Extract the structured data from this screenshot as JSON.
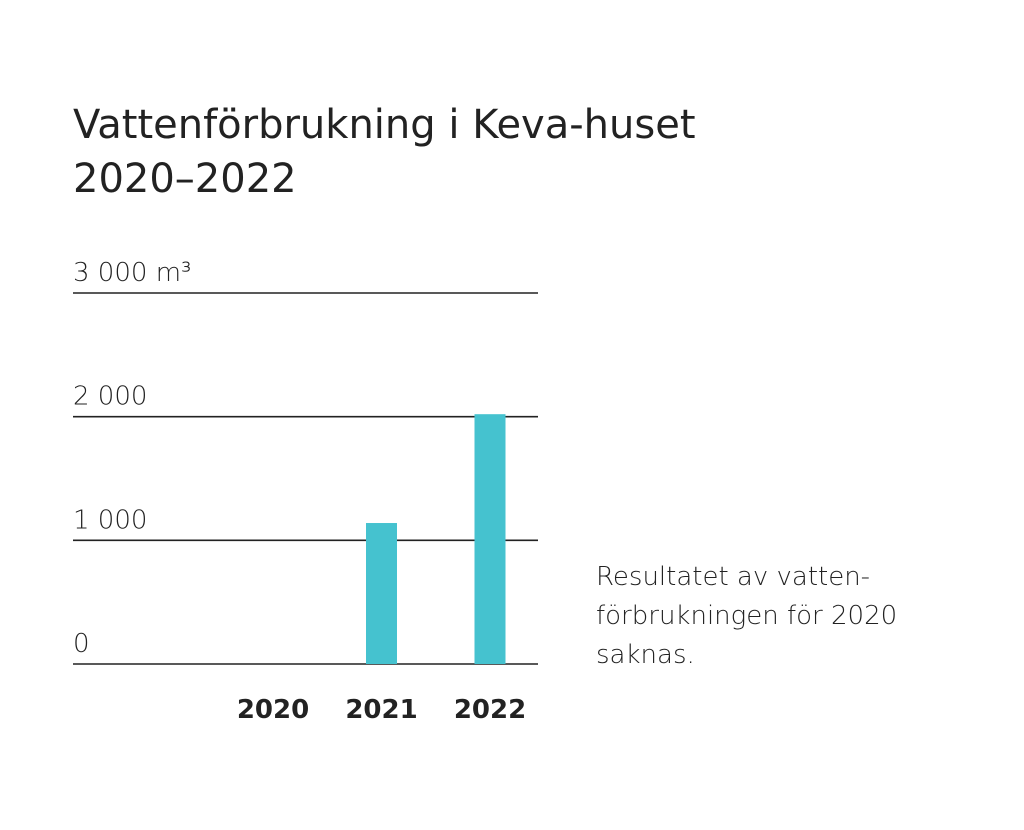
{
  "chart_data": {
    "type": "bar",
    "title": [
      "Vattenförbrukning i Keva-huset",
      "2020–2022"
    ],
    "categories": [
      "2020",
      "2021",
      "2022"
    ],
    "values": [
      null,
      1140,
      2020
    ],
    "color": "#45c2cf",
    "ylim": [
      0,
      3000
    ],
    "yticks": [
      0,
      {
        "value": 1000,
        "label": "1 000"
      },
      {
        "value": 2000,
        "label": "2 000"
      },
      {
        "value": 3000,
        "label": "3 000 m³"
      }
    ],
    "grid": true,
    "annotation": [
      "Resultatet av vatten-",
      "förbrukningen för 2020",
      "saknas."
    ]
  }
}
